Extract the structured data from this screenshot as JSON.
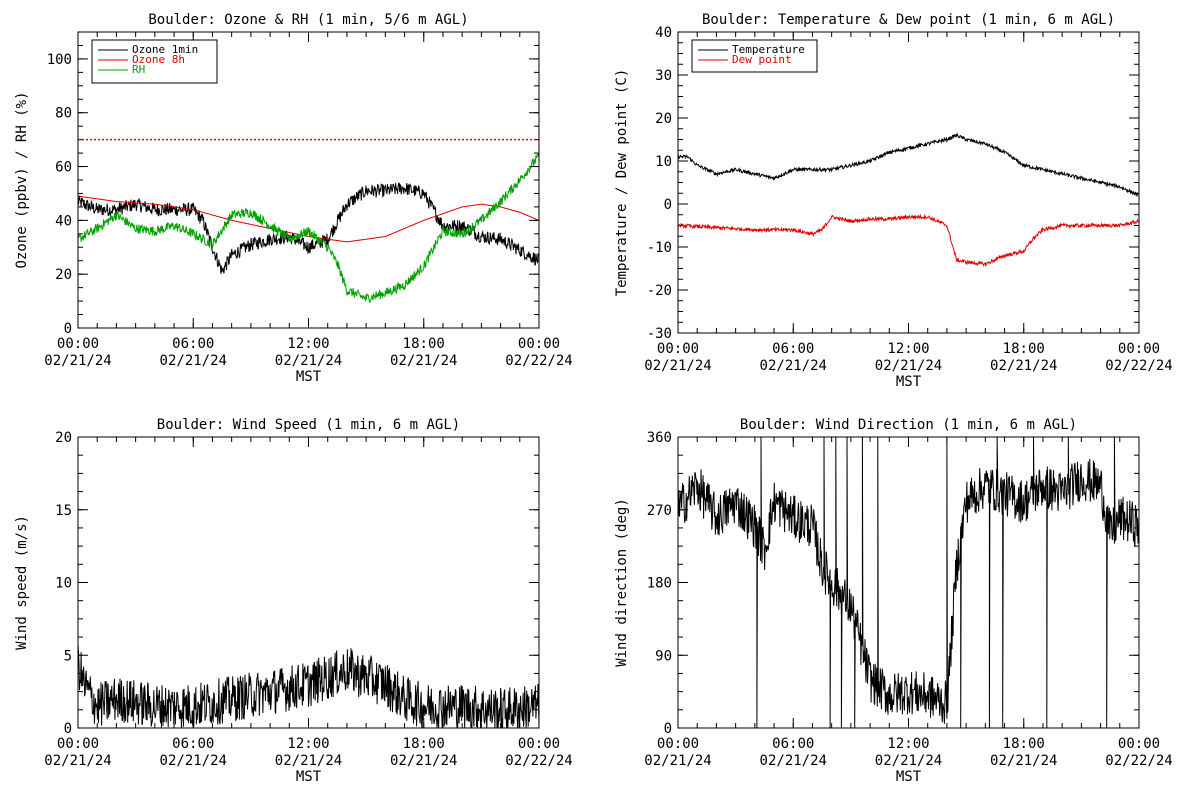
{
  "chart_data": [
    {
      "type": "line",
      "title": "Boulder: Ozone & RH (1 min, 5/6 m AGL)",
      "xlabel": "MST",
      "ylabel": "Ozone (ppbv) / RH (%)",
      "ylim": [
        0,
        110
      ],
      "yticks": [
        0,
        20,
        40,
        60,
        80,
        100
      ],
      "xticks": [
        {
          "time": "00:00",
          "date": "02/21/24"
        },
        {
          "time": "06:00",
          "date": "02/21/24"
        },
        {
          "time": "12:00",
          "date": "02/21/24"
        },
        {
          "time": "18:00",
          "date": "02/21/24"
        },
        {
          "time": "00:00",
          "date": "02/22/24"
        }
      ],
      "xlim_hours": [
        0,
        24
      ],
      "legend_position": "top-left",
      "reference_line": {
        "y": 70,
        "style": "dotted",
        "color": "#e00000"
      },
      "series": [
        {
          "name": "Ozone 1min",
          "color": "#000000",
          "noise": 2.5,
          "x": [
            0,
            1,
            2,
            3,
            4,
            5,
            6,
            6.5,
            7,
            7.5,
            8,
            9,
            10,
            11,
            12,
            13,
            14,
            15,
            16,
            17,
            18,
            19,
            20,
            21,
            22,
            23,
            24
          ],
          "values": [
            47,
            44,
            44,
            46,
            44,
            44,
            44,
            40,
            30,
            21,
            27,
            31,
            33,
            34,
            30,
            33,
            46,
            51,
            51,
            52,
            50,
            38,
            38,
            34,
            33,
            29,
            25
          ]
        },
        {
          "name": "Ozone 8h",
          "color": "#e00000",
          "noise": 0,
          "x": [
            0,
            2,
            4,
            6,
            8,
            10,
            12,
            14,
            16,
            18,
            20,
            21,
            22,
            23,
            24
          ],
          "values": [
            49,
            47,
            46,
            44,
            40,
            37,
            34,
            32,
            34,
            40,
            45,
            46,
            45,
            43,
            40
          ]
        },
        {
          "name": "RH",
          "color": "#00a000",
          "noise": 1.8,
          "x": [
            0,
            1,
            2,
            3,
            4,
            5,
            6,
            7,
            8,
            9,
            10,
            11,
            12,
            13,
            13.5,
            14,
            15,
            16,
            17,
            18,
            19,
            20,
            21,
            22,
            23,
            24
          ],
          "values": [
            33,
            37,
            42,
            37,
            36,
            38,
            35,
            31,
            42,
            43,
            38,
            33,
            36,
            30,
            24,
            14,
            11,
            13,
            16,
            23,
            36,
            35,
            40,
            47,
            55,
            64
          ]
        }
      ]
    },
    {
      "type": "line",
      "title": "Boulder: Temperature & Dew point (1 min, 6 m AGL)",
      "xlabel": "MST",
      "ylabel": "Temperature / Dew point (C)",
      "ylim": [
        -30,
        40
      ],
      "yticks": [
        -30,
        -20,
        -10,
        0,
        10,
        20,
        30,
        40
      ],
      "xticks": [
        {
          "time": "00:00",
          "date": "02/21/24"
        },
        {
          "time": "06:00",
          "date": "02/21/24"
        },
        {
          "time": "12:00",
          "date": "02/21/24"
        },
        {
          "time": "18:00",
          "date": "02/21/24"
        },
        {
          "time": "00:00",
          "date": "02/22/24"
        }
      ],
      "xlim_hours": [
        0,
        24
      ],
      "legend_position": "top-left",
      "series": [
        {
          "name": "Temperature",
          "color": "#000000",
          "noise": 0.4,
          "x": [
            0,
            0.5,
            1,
            2,
            3,
            4,
            5,
            6,
            7,
            8,
            9,
            10,
            11,
            12,
            13,
            14,
            14.5,
            15,
            16,
            17,
            18,
            19,
            20,
            21,
            22,
            23,
            24
          ],
          "values": [
            11,
            11,
            9,
            7,
            8,
            7,
            6,
            8,
            8,
            8,
            9,
            10,
            12,
            13,
            14,
            15,
            16,
            15,
            14,
            12,
            9,
            8,
            7,
            6,
            5,
            4,
            2
          ]
        },
        {
          "name": "Dew point",
          "color": "#e00000",
          "noise": 0.4,
          "x": [
            0,
            2,
            4,
            6,
            7,
            7.5,
            8,
            9,
            10,
            11,
            12,
            13,
            14,
            14.5,
            15,
            16,
            17,
            18,
            18.5,
            19,
            20,
            21,
            22,
            23,
            24
          ],
          "values": [
            -5,
            -5.5,
            -6,
            -6,
            -7,
            -6,
            -3,
            -4,
            -3.5,
            -3.5,
            -3,
            -3,
            -5,
            -13,
            -13.5,
            -14,
            -12,
            -11,
            -8,
            -6,
            -5,
            -5,
            -5,
            -5,
            -4
          ]
        }
      ]
    },
    {
      "type": "line",
      "title": "Boulder: Wind Speed (1 min, 6 m AGL)",
      "xlabel": "MST",
      "ylabel": "Wind speed (m/s)",
      "ylim": [
        0,
        20
      ],
      "yticks": [
        0,
        5,
        10,
        15,
        20
      ],
      "xticks": [
        {
          "time": "00:00",
          "date": "02/21/24"
        },
        {
          "time": "06:00",
          "date": "02/21/24"
        },
        {
          "time": "12:00",
          "date": "02/21/24"
        },
        {
          "time": "18:00",
          "date": "02/21/24"
        },
        {
          "time": "00:00",
          "date": "02/22/24"
        }
      ],
      "xlim_hours": [
        0,
        24
      ],
      "series": [
        {
          "name": "",
          "color": "#000000",
          "noise": 1.6,
          "floor": 0,
          "x": [
            0,
            0.3,
            1,
            2,
            4,
            6,
            8,
            10,
            12,
            13,
            14,
            15,
            16,
            17,
            18,
            20,
            22,
            24
          ],
          "values": [
            4.5,
            3,
            1.5,
            2,
            1.5,
            1.5,
            2,
            2.5,
            3,
            3.5,
            4,
            3.5,
            3,
            2,
            1.5,
            1.5,
            1.2,
            1.5
          ]
        }
      ]
    },
    {
      "type": "line",
      "title": "Boulder: Wind Direction (1 min, 6 m AGL)",
      "xlabel": "MST",
      "ylabel": "Wind direction (deg)",
      "ylim": [
        0,
        360
      ],
      "yticks": [
        0,
        90,
        180,
        270,
        360
      ],
      "xticks": [
        {
          "time": "00:00",
          "date": "02/21/24"
        },
        {
          "time": "06:00",
          "date": "02/21/24"
        },
        {
          "time": "12:00",
          "date": "02/21/24"
        },
        {
          "time": "18:00",
          "date": "02/21/24"
        },
        {
          "time": "00:00",
          "date": "02/22/24"
        }
      ],
      "xlim_hours": [
        0,
        24
      ],
      "series": [
        {
          "name": "",
          "color": "#000000",
          "noise": 28,
          "floor": 0,
          "ceil": 360,
          "x": [
            0,
            1,
            2,
            3,
            4,
            4.5,
            5,
            6,
            7,
            7.5,
            8,
            9,
            10,
            11,
            12,
            13,
            14,
            14.5,
            15,
            16,
            17,
            18,
            19,
            20,
            21,
            22,
            22.5,
            23,
            24
          ],
          "values": [
            270,
            300,
            260,
            280,
            250,
            220,
            280,
            260,
            250,
            200,
            180,
            150,
            60,
            40,
            45,
            40,
            30,
            200,
            280,
            300,
            290,
            280,
            300,
            290,
            310,
            300,
            240,
            260,
            250
          ],
          "spikes": [
            {
              "x": 4.1,
              "y": 0
            },
            {
              "x": 4.3,
              "y": 360
            },
            {
              "x": 7.6,
              "y": 360
            },
            {
              "x": 7.9,
              "y": 0
            },
            {
              "x": 8.2,
              "y": 360
            },
            {
              "x": 8.5,
              "y": 0
            },
            {
              "x": 8.8,
              "y": 360
            },
            {
              "x": 9.2,
              "y": 0
            },
            {
              "x": 9.6,
              "y": 360
            },
            {
              "x": 10.4,
              "y": 360
            },
            {
              "x": 14.0,
              "y": 360
            },
            {
              "x": 14.7,
              "y": 0
            },
            {
              "x": 16.2,
              "y": 0
            },
            {
              "x": 16.6,
              "y": 360
            },
            {
              "x": 16.9,
              "y": 0
            },
            {
              "x": 18.5,
              "y": 360
            },
            {
              "x": 19.2,
              "y": 0
            },
            {
              "x": 20.3,
              "y": 360
            },
            {
              "x": 22.3,
              "y": 0
            },
            {
              "x": 22.7,
              "y": 360
            }
          ]
        }
      ]
    }
  ]
}
